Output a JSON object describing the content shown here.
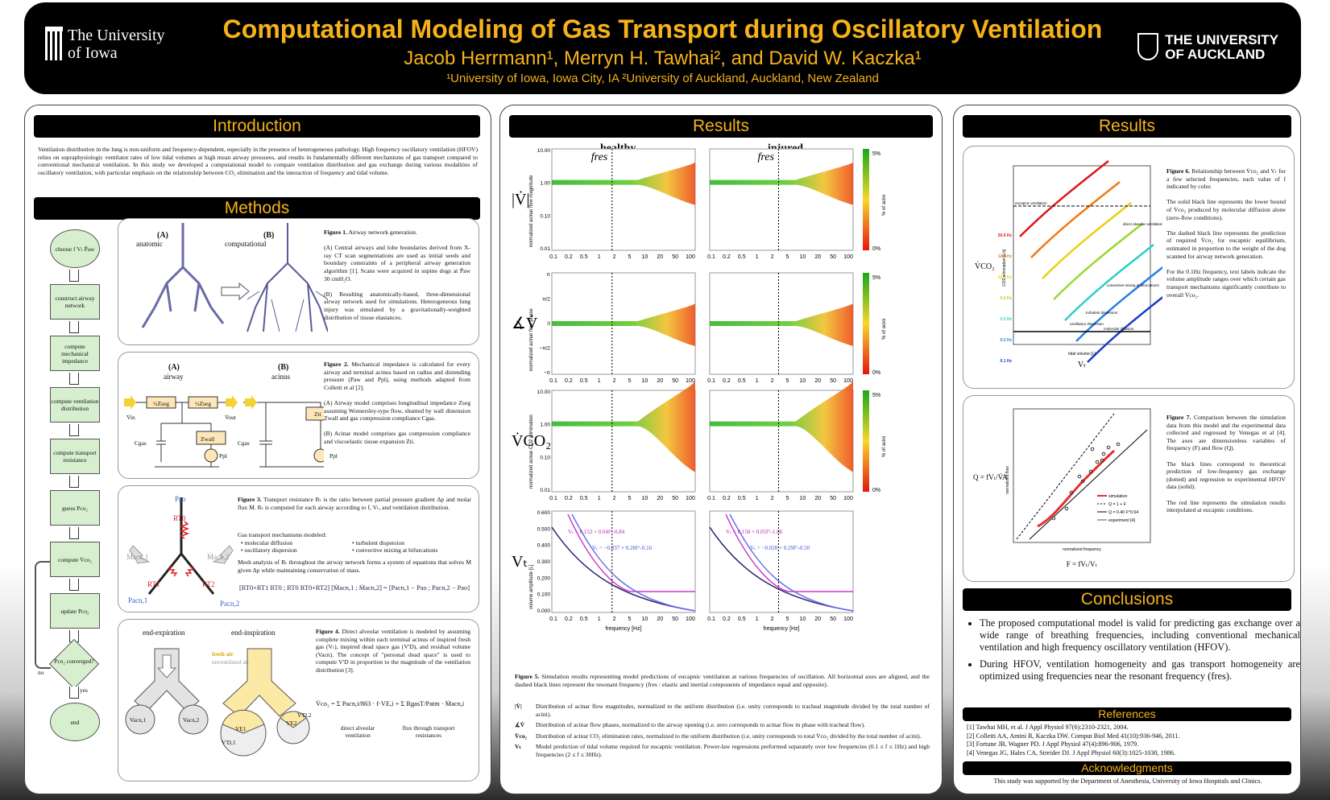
{
  "header": {
    "title": "Computational Modeling of Gas Transport during Oscillatory Ventilation",
    "authors": "Jacob Herrmann¹, Merryn H. Tawhai², and David W. Kaczka¹",
    "affiliations": "¹University of Iowa, Iowa City, IA  ²University of Auckland, Auckland, New Zealand",
    "logo_left": [
      "The University",
      "of Iowa"
    ],
    "logo_right": [
      "THE UNIVERSITY",
      "OF AUCKLAND"
    ]
  },
  "introduction": {
    "heading": "Introduction",
    "text": "Ventilation distribution in the lung is non-uniform and frequency-dependent, especially in the presence of heterogeneous pathology. High frequency oscillatory ventilation (HFOV) relies on supraphysiologic ventilator rates of low tidal volumes at high mean airway pressures, and results in fundamentally different mechanisms of gas transport compared to conventional mechanical ventilation. In this study we developed a computational model to compare ventilation distribution and gas exchange during various modalities of oscillatory ventilation, with particular emphasis on the relationship between CO₂ elimination and the interaction of frequency and tidal volume."
  },
  "methods": {
    "heading": "Methods",
    "flow": [
      "choose f Vₜ P̄aw",
      "construct airway network",
      "compute mechanical impedance",
      "compute ventilation distribution",
      "compute transport resistance",
      "guess Pco₂",
      "compute V̇co₂",
      "update Pco₂",
      "Pco₂ converged?",
      "end"
    ],
    "flow_no": "no",
    "flow_yes": "yes",
    "fig1": {
      "labelA": "(A)",
      "labelA2": "anatomic",
      "labelB": "(B)",
      "labelB2": "computational",
      "title": "Figure 1.",
      "cap0": "Airway network generation.",
      "capA": "(A) Central airways and lobe boundaries derived from X-ray CT scan segmentations are used as initial seeds and boundary constraints of a peripheral airway generation algorithm [1]. Scans were acquired in supine dogs at P̄aw 30 cmH₂O.",
      "capB": "(B) Resulting anatomically-based, three-dimensional airway network used for simulations. Heterogeneous lung injury was simulated by a gravitationally-weighted distribution of tissue elastances."
    },
    "fig2": {
      "labelA": "(A)",
      "labelA2": "airway",
      "labelB": "(B)",
      "labelB2": "acinus",
      "z_seg": "½Zseg",
      "z_wall": "Zwall",
      "z_ti": "Zti",
      "c_gas": "Cgas",
      "p_pl": "Ppl",
      "v_in": "V̇in",
      "v_out": "V̇out",
      "title": "Figure 2.",
      "cap0": "Mechanical impedance is calculated for every airway and terminal acinus based on radius and distending pressure (Paw and Ppl), using methods adapted from Colletti et al [2].",
      "capA": "(A) Airway model comprises longitudinal impedance Zseg assuming Womersley-type flow, shunted by wall distension Zwall and gas compression compliance Cgas.",
      "capB": "(B) Acinar model comprises gas compression compliance and viscoelastic tissue expansion Zti."
    },
    "fig3": {
      "p_ao": "Pao",
      "r_t0": "RT0",
      "r_t1": "RT1",
      "r_t2": "RT2",
      "m1": "Ṁacn,1",
      "m2": "Ṁacn,2",
      "p1": "Pacn,1",
      "p2": "Pacn,2",
      "title": "Figure 3.",
      "cap0": "Transport resistance Rₜ is the ratio between partial pressure gradient Δp and molar flux Ṁ. Rₜ is computed for each airway according to f, Vₜ, and ventilation distribution.",
      "mech_head": "Gas transport mechanisms modeled:",
      "mechs": [
        "molecular diffusion",
        "oscillatory dispersion",
        "turbulent dispersion",
        "convective mixing at bifurcations"
      ],
      "cap1": "Mesh analysis of Rₜ throughout the airway network forms a system of equations that solves Ṁ given Δp while maintaining conservation of mass.",
      "matrix": "[RT0+RT1  RT0 ; RT0  RT0+RT2] [Ṁacn,1 ; Ṁacn,2] = [Pacn,1 − Pao ; Pacn,2 − Pao]"
    },
    "fig4": {
      "lab_exp": "end-expiration",
      "lab_insp": "end-inspiration",
      "fresh": "fresh air",
      "unvent": "unventilated air",
      "v1": "Vacn,1",
      "v2": "Vacn,2",
      "ve1": "VE1",
      "ve2": "VE2",
      "vd1": "V'D,1",
      "vd2": "V'D,2",
      "title": "Figure 4.",
      "cap0": "Direct alveolar ventilation is modeled by assuming complete mixing within each terminal acinus of inspired fresh gas (Vₜ), inspired dead space gas (V'D), and residual volume (Vacn). The concept of \"personal dead space\" is used to compute V'D in proportion to the magnitude of the ventilation distribution [3].",
      "eq": "V̇co₂ = Σ Pacn,i/863 · f·VE,i + Σ RgasT/Patm · Ṁacn,i",
      "eq_lab1": "direct alveolar ventilation",
      "eq_lab2": "flux through transport resistances"
    }
  },
  "results_mid": {
    "heading": "Results",
    "col_healthy": "healthy",
    "col_injured": "injured",
    "fres": "fres",
    "rows": [
      {
        "sym": "|V̇|",
        "ylabel": "normalized acinar flow magnitude",
        "ticks": [
          "10.00",
          "1.00",
          "0.10",
          "0.01"
        ]
      },
      {
        "sym": "∡V̇",
        "ylabel": "normalized acinar flow phase",
        "ticks": [
          "π",
          "π/2",
          "0",
          "−π/2",
          "−π"
        ]
      },
      {
        "sym": "V̇CO₂",
        "ylabel": "normalized acinar CO2 elimination",
        "ticks": [
          "10.00",
          "1.00",
          "0.10",
          "0.01"
        ]
      },
      {
        "sym": "Vₜ",
        "ylabel": "volume amplitude [L]",
        "ticks": [
          "0.600",
          "0.500",
          "0.400",
          "0.300",
          "0.200",
          "0.100",
          "0.000"
        ]
      }
    ],
    "xticks": [
      "0.1",
      "0.2",
      "0.5",
      "1",
      "2",
      "5",
      "10",
      "20",
      "50",
      "100"
    ],
    "cbar_top": "5%",
    "cbar_bot": "0%",
    "cbar_label": "% of acini",
    "freq_label": "frequency [Hz]",
    "eq_h1": "Vₜ = 0.152 + 0.04f^-0.84",
    "eq_h2": "Vₜ = −0.037 + 0.28f^-0.16",
    "eq_i1": "Vₜ = 0.158 + 0.05f^-1.06",
    "eq_i2": "Vₜ = −0.028 + 0.29f^-0.50",
    "fig5_title": "Figure 5.",
    "fig5_cap": "Simulation results representing model predictions of eucapnic ventilation at various frequencies of oscillation. All horizontal axes are aligned, and the dashed black lines represent the resonant frequency (fres : elastic and inertial components of impedance equal and opposite).",
    "legend": [
      {
        "sym": "|V̇|",
        "text": "Distribution of acinar flow magnitudes, normalized to the uniform distribution (i.e. unity corresponds to tracheal magnitude divided by the total number of acini)."
      },
      {
        "sym": "∡V̇",
        "text": "Distribution of acinar flow phases, normalized to the airway opening (i.e. zero corresponds to acinar flow in phase with tracheal flow)."
      },
      {
        "sym": "V̇co₂",
        "text": "Distribution of acinar CO₂ elimination rates, normalized to the uniform distribution (i.e. unity corresponds to total V̇co₂ divided by the total number of acini)."
      },
      {
        "sym": "Vₜ",
        "text": "Model prediction of tidal volume required for eucapnic ventilation. Power-law regressions performed separately over low frequencies (0.1 ≤ f ≤ 1Hz) and high frequencies (2 ≤ f ≤ 30Hz)."
      }
    ]
  },
  "results_right": {
    "heading": "Results",
    "fig6": {
      "title": "Figure 6.",
      "cap0": "Relationship between V̇co₂ and Vₜ for a few selected frequencies, each value of f indicated by color.",
      "cap1": "The solid black line represents the lower bound of V̇co₂ produced by molecular diffusion alone (zero-flow conditions).",
      "cap2": "The dashed black line represents the prediction of required V̇co₂ for eucapnic equilibrium, estimated in proportion to the weight of the dog scanned for airway network generation.",
      "cap3": "For the 0.1Hz frequency, text labels indicate the volume amplitude ranges over which certain gas transport mechanisms significantly contribute to overall V̇co₂.",
      "freqs": [
        "20.0 Hz",
        "12.0 Hz",
        "10.0 Hz",
        "5.0 Hz",
        "2.0 Hz",
        "0.2 Hz",
        "0.1 Hz"
      ],
      "ann": [
        "eucapnic ventilation",
        "direct alveolar ventilation",
        "convective mixing at bifurcations",
        "turbulent dispersion",
        "oscillatory dispersion",
        "molecular diffusion"
      ],
      "ylab": "V̇CO₂",
      "xlab": "Vₜ",
      "yaxis": "CO2 elimination [L/s]",
      "xaxis": "tidal volume [L]"
    },
    "fig7": {
      "title": "Figure 7.",
      "cap0": "Comparison between the simulation data from this model and the experimental data collected and regressed by Venegas et al [4]. The axes are dimensionless variables of frequency (F) and flow (Q).",
      "cap1": "The black lines correspond to theoretical prediction of low-frequency gas exchange (dotted) and regression to experimental HFOV data (solid).",
      "cap2": "The red line represents the simulation results interpolated at eucapnic conditions.",
      "legend": [
        "simulation",
        "Q = 1 + F",
        "Q = 0.40 F^0.54",
        "experiment [4]"
      ],
      "ylab": "Q = fVₜ/V̇A",
      "xlab": "F = fVₜ/Vₜ",
      "yaxis": "normalized flow",
      "xaxis": "normalized frequency"
    },
    "conclusions_heading": "Conclusions",
    "conclusions": [
      "The proposed computational model is valid for predicting gas exchange over a wide range of breathing frequencies, including conventional mechanical ventilation and high frequency oscillatory ventilation (HFOV).",
      "During HFOV, ventilation homogeneity and gas transport homogeneity are optimized using frequencies near the resonant frequency (fres)."
    ],
    "references_heading": "References",
    "references": [
      "[1]  Tawhai MH, et al.  J Appl Physiol 97(6):2310-2321, 2004.",
      "[2]  Colletti AA, Amini R, Kaczka DW.  Comput Biol Med 41(10):936-946, 2011.",
      "[3]  Fortune JB, Wagner PD.  J Appl Physiol 47(4):896-906, 1979.",
      "[4]  Venegas JG, Hales CA, Streider DJ.  J Appl Physiol 60(3):1025-1030, 1986."
    ],
    "ack_heading": "Acknowledgments",
    "ack": "This study was supported by the Department of Anesthesia, University of Iowa Hospitals and Clinics."
  }
}
